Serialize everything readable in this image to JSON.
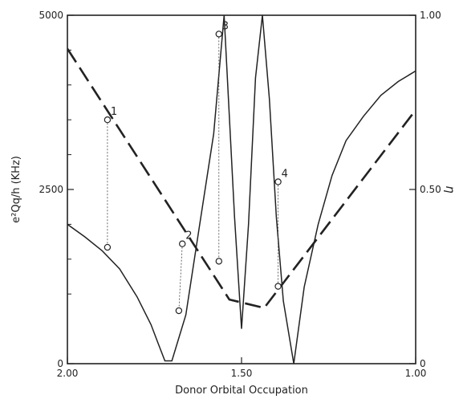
{
  "chart_data": {
    "type": "line",
    "title": "",
    "xlabel": "Donor Orbital Occupation",
    "ylabel_left": "e²Qq/h (KHz)",
    "ylabel_right": "η",
    "xlim": [
      2.0,
      1.0
    ],
    "ylim_left": [
      0,
      5000
    ],
    "ylim_right": [
      0,
      1.0
    ],
    "grid": false,
    "x_tick_labels": [
      {
        "value": 2.0,
        "label": "2.00"
      },
      {
        "value": 1.5,
        "label": "1.50"
      },
      {
        "value": 1.0,
        "label": "1.00"
      }
    ],
    "y_left_tick_labels": [
      {
        "value": 0,
        "label": "0"
      },
      {
        "value": 2500,
        "label": "2500"
      },
      {
        "value": 5000,
        "label": "5000"
      }
    ],
    "y_left_minor_ticks": [
      1000,
      1500,
      2000,
      3000,
      3500,
      4000,
      4500
    ],
    "y_right_tick_labels": [
      {
        "value": 0,
        "label": "0"
      },
      {
        "value": 0.5,
        "label": "0.50"
      },
      {
        "value": 1.0,
        "label": "1.00"
      }
    ],
    "series": [
      {
        "axis": "left",
        "style": "solid",
        "color": "#222222",
        "x": [
          2.0,
          1.95,
          1.9,
          1.85,
          1.8,
          1.76,
          1.74,
          1.72,
          1.7,
          1.66,
          1.62,
          1.58,
          1.55,
          1.52,
          1.5,
          1.48,
          1.46,
          1.44,
          1.42,
          1.4,
          1.38,
          1.35,
          1.32,
          1.28,
          1.24,
          1.2,
          1.15,
          1.1,
          1.05,
          1.0
        ],
        "values": [
          2000,
          1820,
          1620,
          1360,
          960,
          560,
          300,
          40,
          40,
          700,
          2000,
          3300,
          5000,
          2100,
          500,
          2000,
          4100,
          5000,
          3800,
          2100,
          900,
          0,
          1100,
          2000,
          2700,
          3200,
          3550,
          3850,
          4050,
          4200
        ]
      },
      {
        "axis": "left",
        "style": "dashed",
        "color": "#222222",
        "x": [
          2.0,
          1.535,
          1.435,
          1.0
        ],
        "values": [
          4520,
          920,
          800,
          3640
        ]
      }
    ],
    "annotations": [
      {
        "label": "1",
        "points": [
          {
            "x": 1.885,
            "y": 3500
          },
          {
            "x": 1.885,
            "y": 1670
          }
        ]
      },
      {
        "label": "2",
        "points": [
          {
            "x": 1.67,
            "y": 1720
          },
          {
            "x": 1.68,
            "y": 760
          }
        ]
      },
      {
        "label": "3",
        "points": [
          {
            "x": 1.565,
            "y": 4730
          },
          {
            "x": 1.565,
            "y": 1470
          }
        ]
      },
      {
        "label": "4",
        "points": [
          {
            "x": 1.395,
            "y": 2610
          },
          {
            "x": 1.395,
            "y": 1110
          }
        ]
      }
    ]
  }
}
